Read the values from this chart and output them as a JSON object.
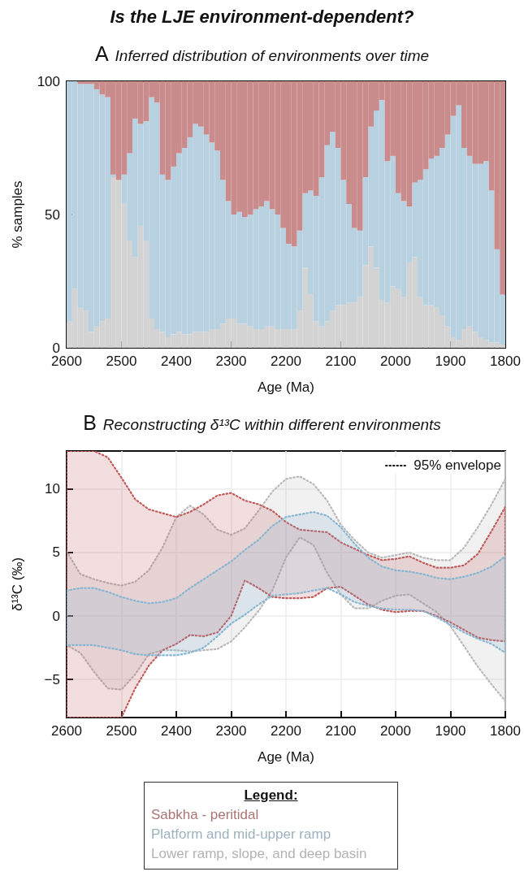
{
  "chart_data": [
    {
      "type": "bar",
      "title": "Is the LJE environment-dependent?",
      "subtitle": "Inferred distribution of environments over time",
      "annotations": [
        "A"
      ],
      "xlabel": "Age (Ma)",
      "ylabel": "% samples",
      "legend_title": "Legend:",
      "legend": "bottom",
      "stacked": true,
      "grid": false,
      "x": [
        2595,
        2585,
        2575,
        2565,
        2555,
        2545,
        2535,
        2525,
        2515,
        2505,
        2495,
        2485,
        2475,
        2465,
        2455,
        2445,
        2435,
        2425,
        2415,
        2405,
        2395,
        2385,
        2375,
        2365,
        2355,
        2345,
        2335,
        2325,
        2315,
        2305,
        2295,
        2285,
        2275,
        2265,
        2255,
        2245,
        2235,
        2225,
        2215,
        2205,
        2195,
        2185,
        2175,
        2165,
        2155,
        2145,
        2135,
        2125,
        2115,
        2105,
        2095,
        2085,
        2075,
        2065,
        2055,
        2045,
        2035,
        2025,
        2015,
        2005,
        1995,
        1985,
        1975,
        1965,
        1955,
        1945,
        1935,
        1925,
        1915,
        1905,
        1895,
        1885,
        1875,
        1865,
        1855,
        1845,
        1835,
        1825,
        1815,
        1805
      ],
      "xlim": [
        2600,
        1800
      ],
      "xticks": [
        2600,
        2500,
        2400,
        2300,
        2200,
        2100,
        2000,
        1900,
        1800
      ],
      "ylim": [
        0,
        100
      ],
      "yticks": [
        0,
        50,
        100
      ],
      "series": [
        {
          "name": "Lower ramp, slope, and deep basin",
          "color": "#d3d3d3",
          "values": [
            10,
            22,
            15,
            14,
            6,
            8,
            10,
            11,
            64,
            63,
            54,
            40,
            34,
            46,
            40,
            11,
            7,
            6,
            4,
            5,
            6,
            5,
            5,
            6,
            6,
            6,
            7,
            7,
            9,
            11,
            11,
            9,
            9,
            8,
            7,
            7,
            8,
            8,
            7,
            7,
            7,
            7,
            14,
            30,
            20,
            10,
            8,
            10,
            14,
            16,
            16,
            17,
            17,
            19,
            31,
            38,
            30,
            18,
            17,
            23,
            22,
            19,
            32,
            34,
            19,
            16,
            16,
            15,
            12,
            8,
            4,
            3,
            7,
            8,
            6,
            4,
            3,
            2,
            2,
            1
          ]
        },
        {
          "name": "Platform and mid-upper ramp",
          "color": "#b8d1e0",
          "values": [
            90,
            78,
            84,
            85,
            93,
            89,
            85,
            83,
            1,
            0,
            11,
            33,
            52,
            38,
            45,
            83,
            85,
            59,
            59,
            63,
            67,
            70,
            74,
            78,
            77,
            74,
            70,
            67,
            54,
            44,
            39,
            42,
            40,
            42,
            45,
            46,
            47,
            44,
            43,
            38,
            32,
            31,
            30,
            28,
            39,
            47,
            56,
            66,
            67,
            59,
            47,
            37,
            28,
            25,
            33,
            45,
            59,
            75,
            53,
            49,
            36,
            36,
            21,
            28,
            44,
            51,
            55,
            57,
            63,
            72,
            83,
            88,
            68,
            64,
            63,
            65,
            67,
            57,
            35,
            19
          ]
        },
        {
          "name": "Sabkha - peritidal",
          "color": "#c98b8b",
          "values": [
            0,
            0,
            1,
            1,
            1,
            3,
            5,
            6,
            35,
            37,
            35,
            27,
            14,
            16,
            15,
            6,
            8,
            35,
            37,
            32,
            27,
            25,
            21,
            16,
            17,
            20,
            23,
            26,
            37,
            45,
            50,
            49,
            51,
            50,
            48,
            47,
            45,
            48,
            50,
            55,
            61,
            62,
            56,
            42,
            41,
            43,
            36,
            24,
            19,
            25,
            37,
            46,
            55,
            56,
            36,
            17,
            11,
            7,
            30,
            28,
            42,
            45,
            47,
            38,
            37,
            33,
            29,
            28,
            25,
            20,
            13,
            9,
            25,
            28,
            31,
            31,
            30,
            41,
            63,
            80
          ]
        }
      ]
    },
    {
      "type": "area",
      "title": "Reconstructing δ¹³C within different environments",
      "annotations": [
        "B",
        "95% envelope"
      ],
      "xlabel": "Age (Ma)",
      "ylabel": "δ¹³C (‰)",
      "grid": true,
      "line_style": "dotted",
      "x": [
        2600,
        2575,
        2550,
        2525,
        2500,
        2475,
        2450,
        2425,
        2400,
        2375,
        2350,
        2325,
        2300,
        2275,
        2250,
        2225,
        2200,
        2175,
        2150,
        2125,
        2100,
        2075,
        2050,
        2025,
        2000,
        1975,
        1950,
        1925,
        1900,
        1875,
        1850,
        1825,
        1800
      ],
      "xlim": [
        2600,
        1800
      ],
      "xticks": [
        2600,
        2500,
        2400,
        2300,
        2200,
        2100,
        2000,
        1900,
        1800
      ],
      "ylim": [
        -8,
        13
      ],
      "yticks": [
        -5,
        0,
        5,
        10
      ],
      "series": [
        {
          "color": "#b9b9b9",
          "values": [
            null,
            null,
            null,
            null,
            null,
            null,
            null,
            null,
            null,
            null,
            null,
            null,
            null,
            null,
            null,
            null,
            null,
            null,
            null,
            null,
            null,
            null,
            null,
            null,
            null,
            null,
            null,
            null,
            null,
            null,
            null,
            null,
            null
          ],
          "lower": [
            -2.3,
            -2.9,
            -4.4,
            -5.7,
            -5.8,
            -4.6,
            -3.0,
            -2.7,
            -2.7,
            -2.8,
            -2.7,
            -2.6,
            -2.0,
            -0.9,
            0.4,
            2.0,
            4.6,
            6.2,
            5.6,
            3.4,
            1.7,
            0.6,
            0.6,
            1.2,
            1.6,
            1.7,
            1.0,
            0.3,
            -0.8,
            -2.4,
            -4.0,
            -5.4,
            -6.7
          ],
          "upper": [
            5.1,
            3.3,
            2.9,
            2.6,
            2.4,
            2.7,
            3.6,
            5.4,
            7.8,
            8.7,
            8.0,
            6.8,
            6.4,
            6.9,
            8.3,
            9.8,
            10.8,
            11.0,
            10.4,
            9.1,
            7.2,
            6.0,
            5.0,
            4.6,
            4.8,
            5.0,
            4.6,
            4.4,
            4.4,
            5.4,
            7.0,
            8.8,
            10.8
          ]
        },
        {
          "color": "#c05a5a",
          "values": [
            null,
            null,
            null,
            null,
            null,
            null,
            null,
            null,
            null,
            null,
            null,
            null,
            null,
            null,
            null,
            null,
            null,
            null,
            null,
            null,
            null,
            null,
            null,
            null,
            null,
            null,
            null,
            null,
            null,
            null,
            null,
            null,
            null
          ],
          "lower": [
            -8,
            -8,
            -8,
            -8,
            -8,
            -5.7,
            -3.9,
            -2.7,
            -2.2,
            -1.5,
            -1.6,
            -1.3,
            0.0,
            2.8,
            2.2,
            1.5,
            1.4,
            1.4,
            1.5,
            2.2,
            2.3,
            1.6,
            0.9,
            0.5,
            0.3,
            0.4,
            0.4,
            0.0,
            -0.5,
            -1.1,
            -1.7,
            -1.9,
            -2.0
          ],
          "upper": [
            13,
            13,
            13,
            12.5,
            10.9,
            9.2,
            8.4,
            8.1,
            7.8,
            8.2,
            8.8,
            9.5,
            9.7,
            9.1,
            8.8,
            8.3,
            7.4,
            6.8,
            6.7,
            6.6,
            5.8,
            5.3,
            4.8,
            4.4,
            4.5,
            4.7,
            4.2,
            3.8,
            3.8,
            4.0,
            4.9,
            6.7,
            8.6
          ]
        },
        {
          "color": "#86b6d2",
          "values": [
            null,
            null,
            null,
            null,
            null,
            null,
            null,
            null,
            null,
            null,
            null,
            null,
            null,
            null,
            null,
            null,
            null,
            null,
            null,
            null,
            null,
            null,
            null,
            null,
            null,
            null,
            null,
            null,
            null,
            null,
            null,
            null,
            null
          ],
          "lower": [
            -2.3,
            -2.3,
            -2.3,
            -2.5,
            -2.7,
            -3.0,
            -3.1,
            -3.1,
            -3.1,
            -2.9,
            -2.5,
            -1.6,
            -0.6,
            0.1,
            0.9,
            1.6,
            1.7,
            1.8,
            2.0,
            2.2,
            1.7,
            1.1,
            0.8,
            0.6,
            0.5,
            0.5,
            0.4,
            -0.1,
            -0.7,
            -1.3,
            -1.8,
            -2.2,
            -2.9
          ],
          "upper": [
            2.0,
            2.2,
            2.2,
            1.9,
            1.5,
            1.2,
            1.0,
            1.1,
            1.4,
            2.2,
            2.9,
            3.6,
            4.3,
            5.2,
            6.0,
            7.1,
            7.8,
            8.0,
            8.2,
            7.9,
            7.0,
            5.7,
            4.6,
            3.9,
            3.6,
            3.5,
            3.3,
            3.0,
            2.9,
            3.1,
            3.4,
            3.9,
            4.7
          ]
        }
      ]
    }
  ]
}
